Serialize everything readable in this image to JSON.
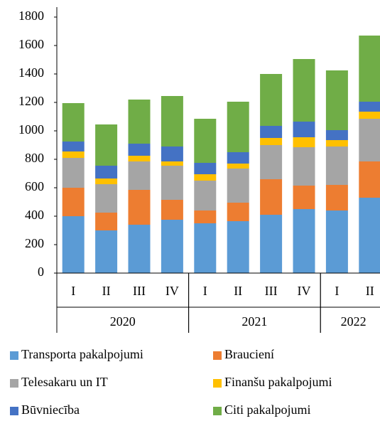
{
  "chart_data": {
    "type": "stacked_bar",
    "categories": [
      "I",
      "II",
      "III",
      "IV",
      "I",
      "II",
      "III",
      "IV",
      "I",
      "II"
    ],
    "groups": [
      {
        "label": "2020",
        "count": 4
      },
      {
        "label": "2021",
        "count": 4
      },
      {
        "label": "2022",
        "count": 2
      }
    ],
    "series": [
      {
        "name": "Transporta pakalpojumi",
        "color": "#5b9bd5",
        "values": [
          400,
          300,
          340,
          375,
          350,
          365,
          410,
          450,
          440,
          530
        ]
      },
      {
        "name": "Brauciení",
        "color": "#ed7d31",
        "values": [
          200,
          125,
          245,
          140,
          90,
          130,
          250,
          165,
          180,
          255
        ]
      },
      {
        "name": "Telesakaru un IT",
        "color": "#a5a5a5",
        "values": [
          210,
          200,
          200,
          240,
          210,
          240,
          240,
          270,
          270,
          300
        ]
      },
      {
        "name": "Finanšu pakalpojumi",
        "color": "#ffc000",
        "values": [
          45,
          40,
          40,
          30,
          45,
          35,
          50,
          70,
          45,
          50
        ]
      },
      {
        "name": "Būvniecība",
        "color": "#4472c4",
        "values": [
          70,
          90,
          85,
          105,
          80,
          80,
          85,
          110,
          70,
          70
        ]
      },
      {
        "name": "Citi pakalpojumi",
        "color": "#70ad47",
        "values": [
          270,
          290,
          310,
          355,
          310,
          355,
          365,
          440,
          420,
          465
        ]
      }
    ],
    "ylim": [
      0,
      1800
    ],
    "yticks": [
      0,
      200,
      400,
      600,
      800,
      1000,
      1200,
      1400,
      1600,
      1800
    ],
    "grid": false
  }
}
